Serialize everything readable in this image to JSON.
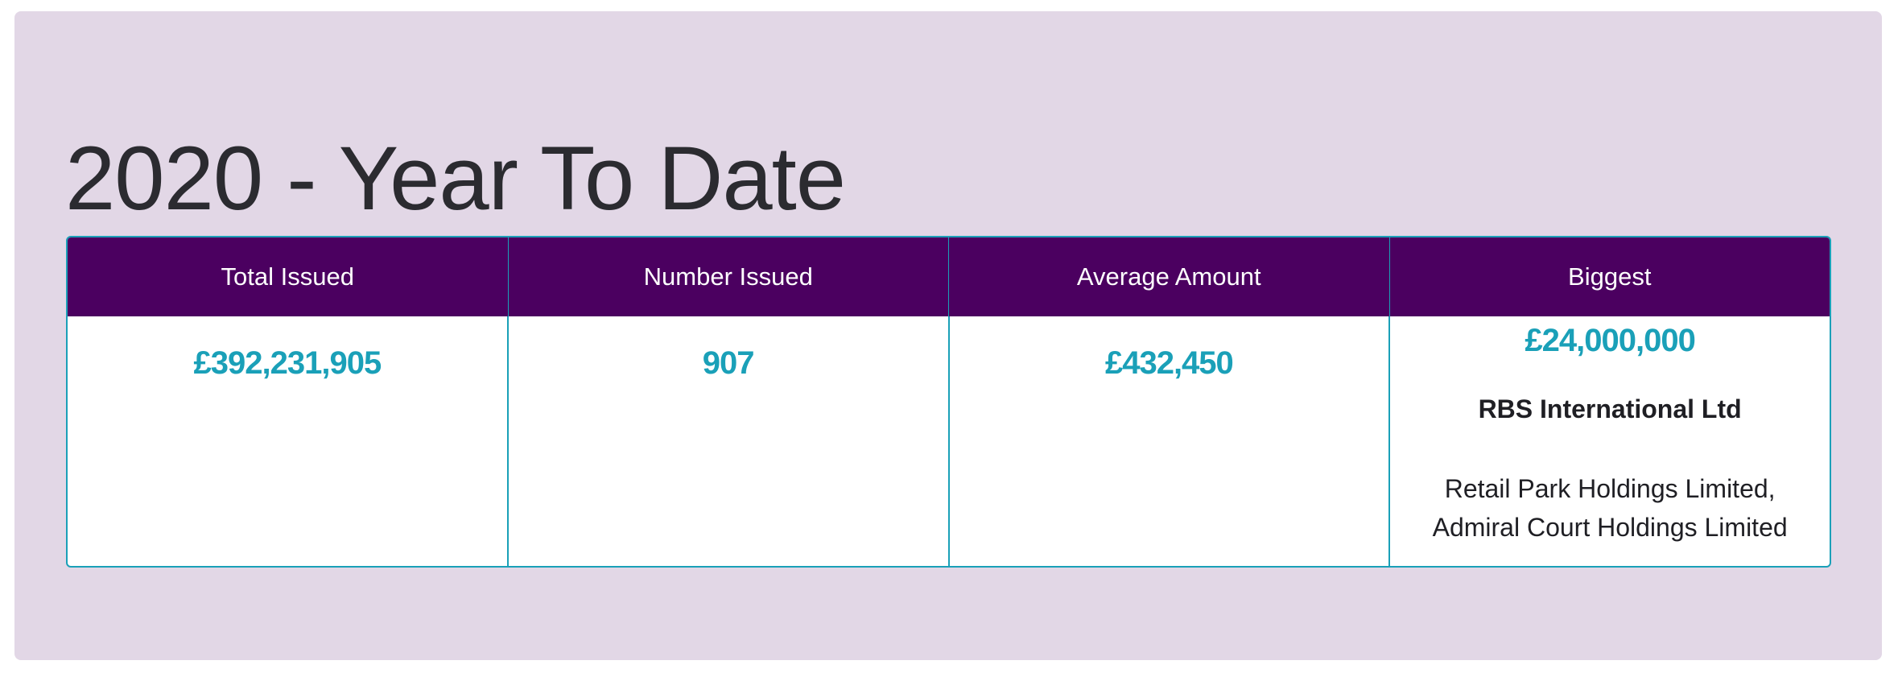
{
  "page": {
    "title": "2020 - Year To Date"
  },
  "table": {
    "headers": [
      "Total Issued",
      "Number Issued",
      "Average Amount",
      "Biggest"
    ],
    "total_issued": "£392,231,905",
    "number_issued": "907",
    "average_amount": "£432,450",
    "biggest": {
      "amount": "£24,000,000",
      "lender": "RBS International Ltd",
      "borrower_line1": "Retail Park Holdings Limited,",
      "borrower_line2": "Admiral Court Holdings Limited"
    }
  },
  "colors": {
    "panel_background": "#e2d7e6",
    "header_background": "#4b0060",
    "accent": "#1aa0b8",
    "title_text": "#2b2b30"
  }
}
